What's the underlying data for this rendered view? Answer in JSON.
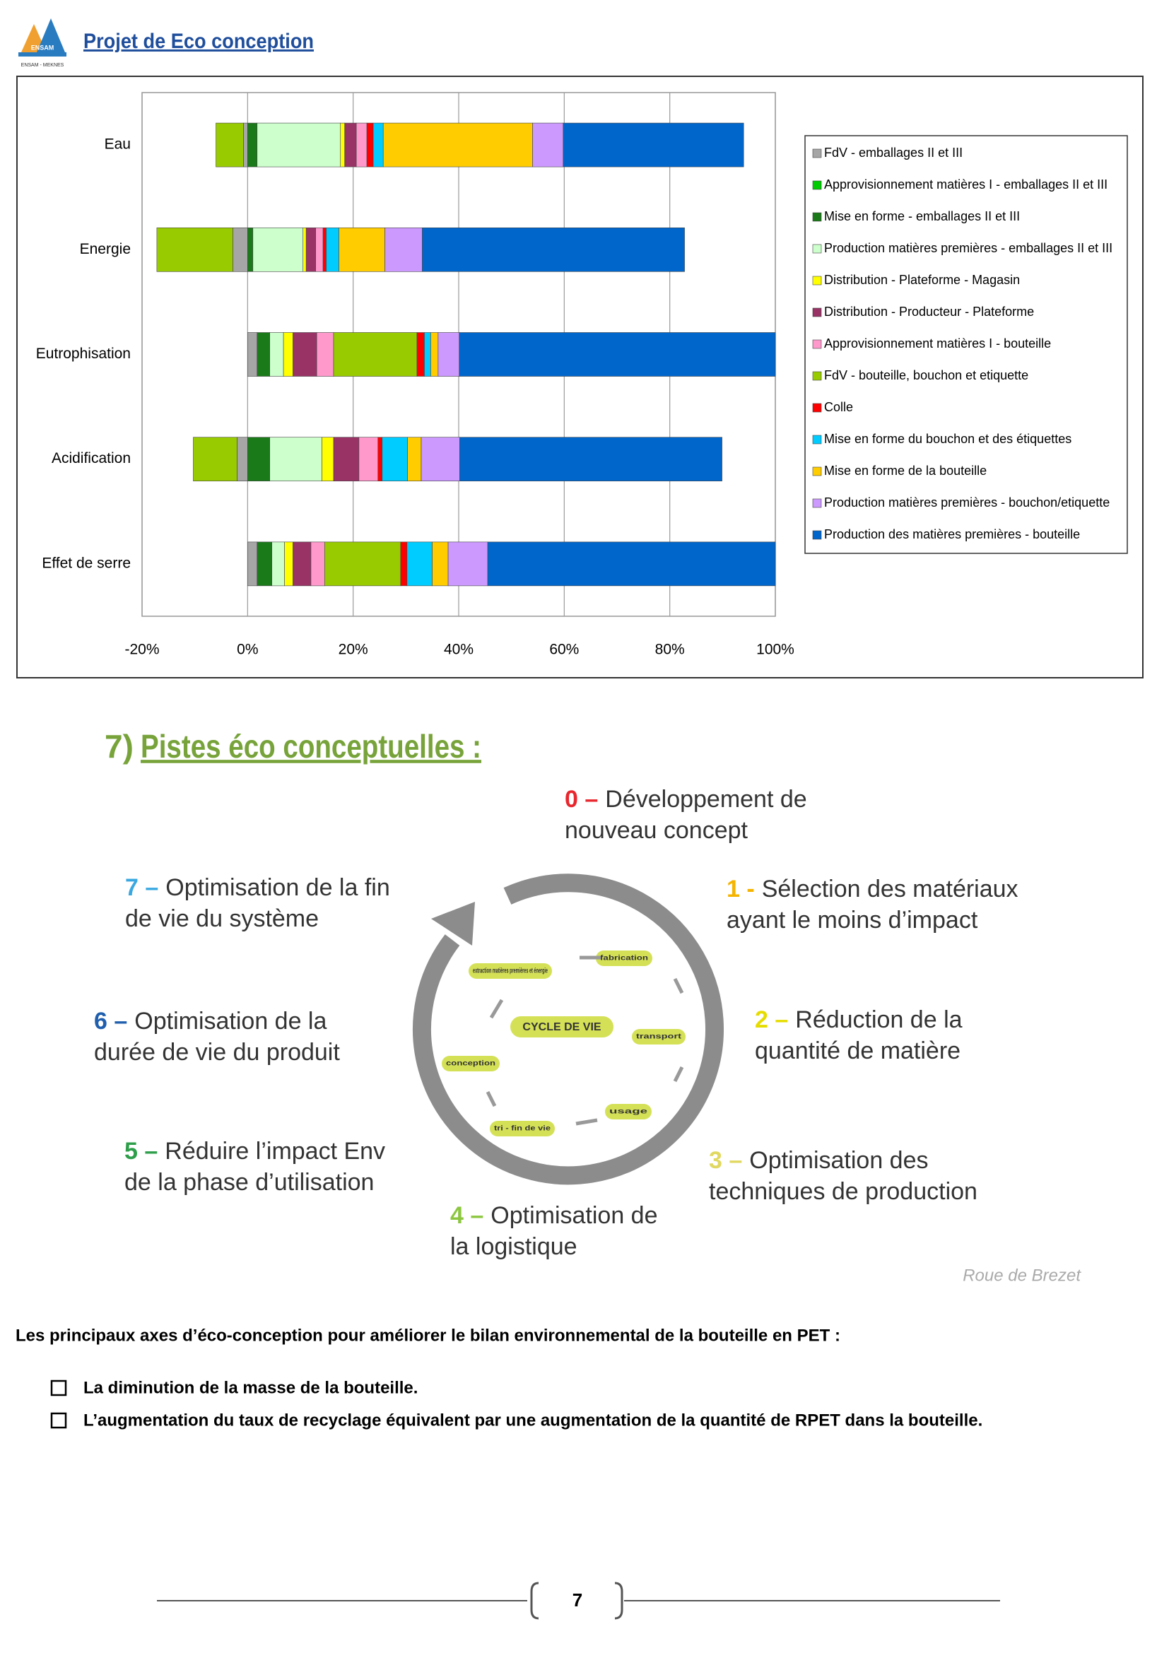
{
  "header": {
    "logo": [
      "ENSAM",
      "ENSAM - MEKNES"
    ],
    "title": "Projet de Eco conception"
  },
  "chart_data": {
    "type": "bar",
    "orientation": "horizontal",
    "stacked": true,
    "categories": [
      "Eau",
      "Energie",
      "Eutrophisation",
      "Acidification",
      "Effet de serre"
    ],
    "series": [
      {
        "name": "FdV - emballages II et III",
        "color": "#a6a6a6",
        "values": [
          -0.8,
          -2.8,
          1.8,
          -2.0,
          1.8
        ]
      },
      {
        "name": "Approvisionnement matières I - emballages II et III",
        "color": "#00cc00",
        "values": [
          0,
          0,
          0,
          0,
          0
        ]
      },
      {
        "name": "Mise en forme  - emballages II et III",
        "color": "#1a7a1a",
        "values": [
          1.8,
          1.0,
          2.4,
          4.2,
          2.8
        ]
      },
      {
        "name": "Production matières premières - emballages II et III",
        "color": "#ccffcc",
        "values": [
          15.8,
          9.5,
          2.6,
          9.9,
          2.4
        ]
      },
      {
        "name": "Distribution - Plateforme - Magasin",
        "color": "#ffff00",
        "values": [
          0.8,
          0.6,
          1.8,
          2.2,
          1.6
        ]
      },
      {
        "name": "Distribution - Producteur - Plateforme",
        "color": "#993366",
        "values": [
          2.2,
          1.8,
          4.5,
          4.8,
          3.4
        ]
      },
      {
        "name": "Approvisionnement matières I - bouteille",
        "color": "#ff99cc",
        "values": [
          2.0,
          1.4,
          3.2,
          3.6,
          2.6
        ]
      },
      {
        "name": "FdV - bouteille, bouchon et etiquette",
        "color": "#99cc00",
        "values": [
          -5.2,
          -14.4,
          15.8,
          -8.3,
          14.4
        ]
      },
      {
        "name": "Colle",
        "color": "#ff0000",
        "values": [
          1.2,
          0.6,
          1.4,
          0.8,
          1.2
        ]
      },
      {
        "name": "Mise en forme du bouchon et des étiquettes",
        "color": "#00ccff",
        "values": [
          1.9,
          2.4,
          1.2,
          4.8,
          4.8
        ]
      },
      {
        "name": "Mise en forme de la bouteille",
        "color": "#ffcc00",
        "values": [
          28.3,
          8.7,
          1.4,
          2.6,
          3.0
        ]
      },
      {
        "name": "Production matières premières - bouchon/etiquette",
        "color": "#cc99ff",
        "values": [
          5.8,
          7.1,
          4.0,
          7.3,
          7.5
        ]
      },
      {
        "name": "Production des matières premières - bouteille",
        "color": "#0066cc",
        "values": [
          34.2,
          49.7,
          59.9,
          49.7,
          54.5
        ]
      }
    ],
    "xlim": [
      -20,
      100
    ],
    "xticks": [
      {
        "value": -20,
        "label": "-20%"
      },
      {
        "value": 0,
        "label": "0%"
      },
      {
        "value": 20,
        "label": "20%"
      },
      {
        "value": 40,
        "label": "40%"
      },
      {
        "value": 60,
        "label": "60%"
      },
      {
        "value": 80,
        "label": "80%"
      },
      {
        "value": 100,
        "label": "100%"
      }
    ],
    "grid": true,
    "legend": "right"
  },
  "section": {
    "number": "7)",
    "title": "Pistes éco conceptuelles :"
  },
  "diagram": {
    "steps": [
      {
        "number": "0 –",
        "color": "#e8262d",
        "lines": [
          "Développement de",
          "nouveau concept"
        ]
      },
      {
        "number": "1 -",
        "color": "#f5b400",
        "lines": [
          "Sélection des matériaux",
          "ayant le moins d’impact"
        ]
      },
      {
        "number": "2 –",
        "color": "#e6dc00",
        "lines": [
          "Réduction de la",
          "quantité de matière"
        ]
      },
      {
        "number": "3 –",
        "color": "#e0d860",
        "lines": [
          "Optimisation des",
          "techniques de production"
        ]
      },
      {
        "number": "4 –",
        "color": "#8cc63f",
        "lines": [
          "Optimisation de",
          "la logistique"
        ]
      },
      {
        "number": "5 –",
        "color": "#2e9e4a",
        "lines": [
          "Réduire l’impact Env",
          "de la phase d’utilisation"
        ]
      },
      {
        "number": "6 –",
        "color": "#1f5fae",
        "lines": [
          "Optimisation de la",
          "durée de vie du produit"
        ]
      },
      {
        "number": "7 –",
        "color": "#3aa8e0",
        "lines": [
          "Optimisation de la fin",
          "de vie du système"
        ]
      }
    ],
    "center": "CYCLE DE VIE",
    "stages": [
      "extraction matières premières et énergie",
      "fabrication",
      "transport",
      "usage",
      "tri - fin de vie",
      "conception"
    ],
    "source": "Roue de Brezet"
  },
  "body": {
    "intro": "Les principaux axes d’éco-conception pour améliorer le bilan environnemental de la bouteille en PET :",
    "bullets": [
      "La diminution de la masse de la bouteille.",
      "L’augmentation du taux de recyclage équivalent par une augmentation de la quantité de RPET dans la bouteille."
    ]
  },
  "footer": {
    "page": "7"
  }
}
